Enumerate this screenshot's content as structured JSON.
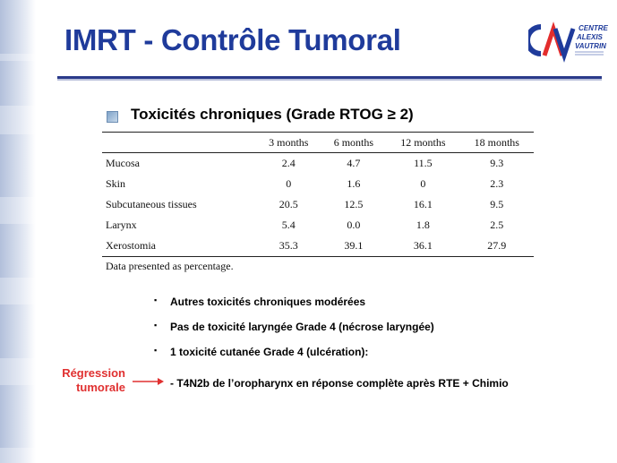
{
  "slide": {
    "title": "IMRT - Contrôle Tumoral",
    "logo": {
      "line1": "CENTRE",
      "line2": "ALEXIS",
      "line3": "VAUTRIN",
      "mark_letters": "CAV",
      "colors": [
        "#1f3b9b",
        "#e32d2d"
      ]
    },
    "heading": "Toxicités chroniques (Grade RTOG ≥ 2)"
  },
  "table": {
    "columns": [
      "",
      "3 months",
      "6 months",
      "12 months",
      "18 months"
    ],
    "rows": [
      {
        "label": "Mucosa",
        "values": [
          "2.4",
          "4.7",
          "11.5",
          "9.3"
        ]
      },
      {
        "label": "Skin",
        "values": [
          "0",
          "1.6",
          "0",
          "2.3"
        ]
      },
      {
        "label": "Subcutaneous tissues",
        "values": [
          "20.5",
          "12.5",
          "16.1",
          "9.5"
        ]
      },
      {
        "label": "Larynx",
        "values": [
          "5.4",
          "0.0",
          "1.8",
          "2.5"
        ]
      },
      {
        "label": "Xerostomia",
        "values": [
          "35.3",
          "39.1",
          "36.1",
          "27.9"
        ]
      }
    ],
    "note": "Data presented as percentage."
  },
  "bullets": [
    "Autres toxicités chroniques modérées",
    "Pas de toxicité laryngée Grade 4 (nécrose laryngée)",
    "1 toxicité cutanée Grade 4 (ulcération):"
  ],
  "subline": "- T4N2b de l’oropharynx en réponse complète après RTE + Chimio",
  "callout": {
    "line1": "Régression",
    "line2": "tumorale",
    "color": "#e03030"
  }
}
